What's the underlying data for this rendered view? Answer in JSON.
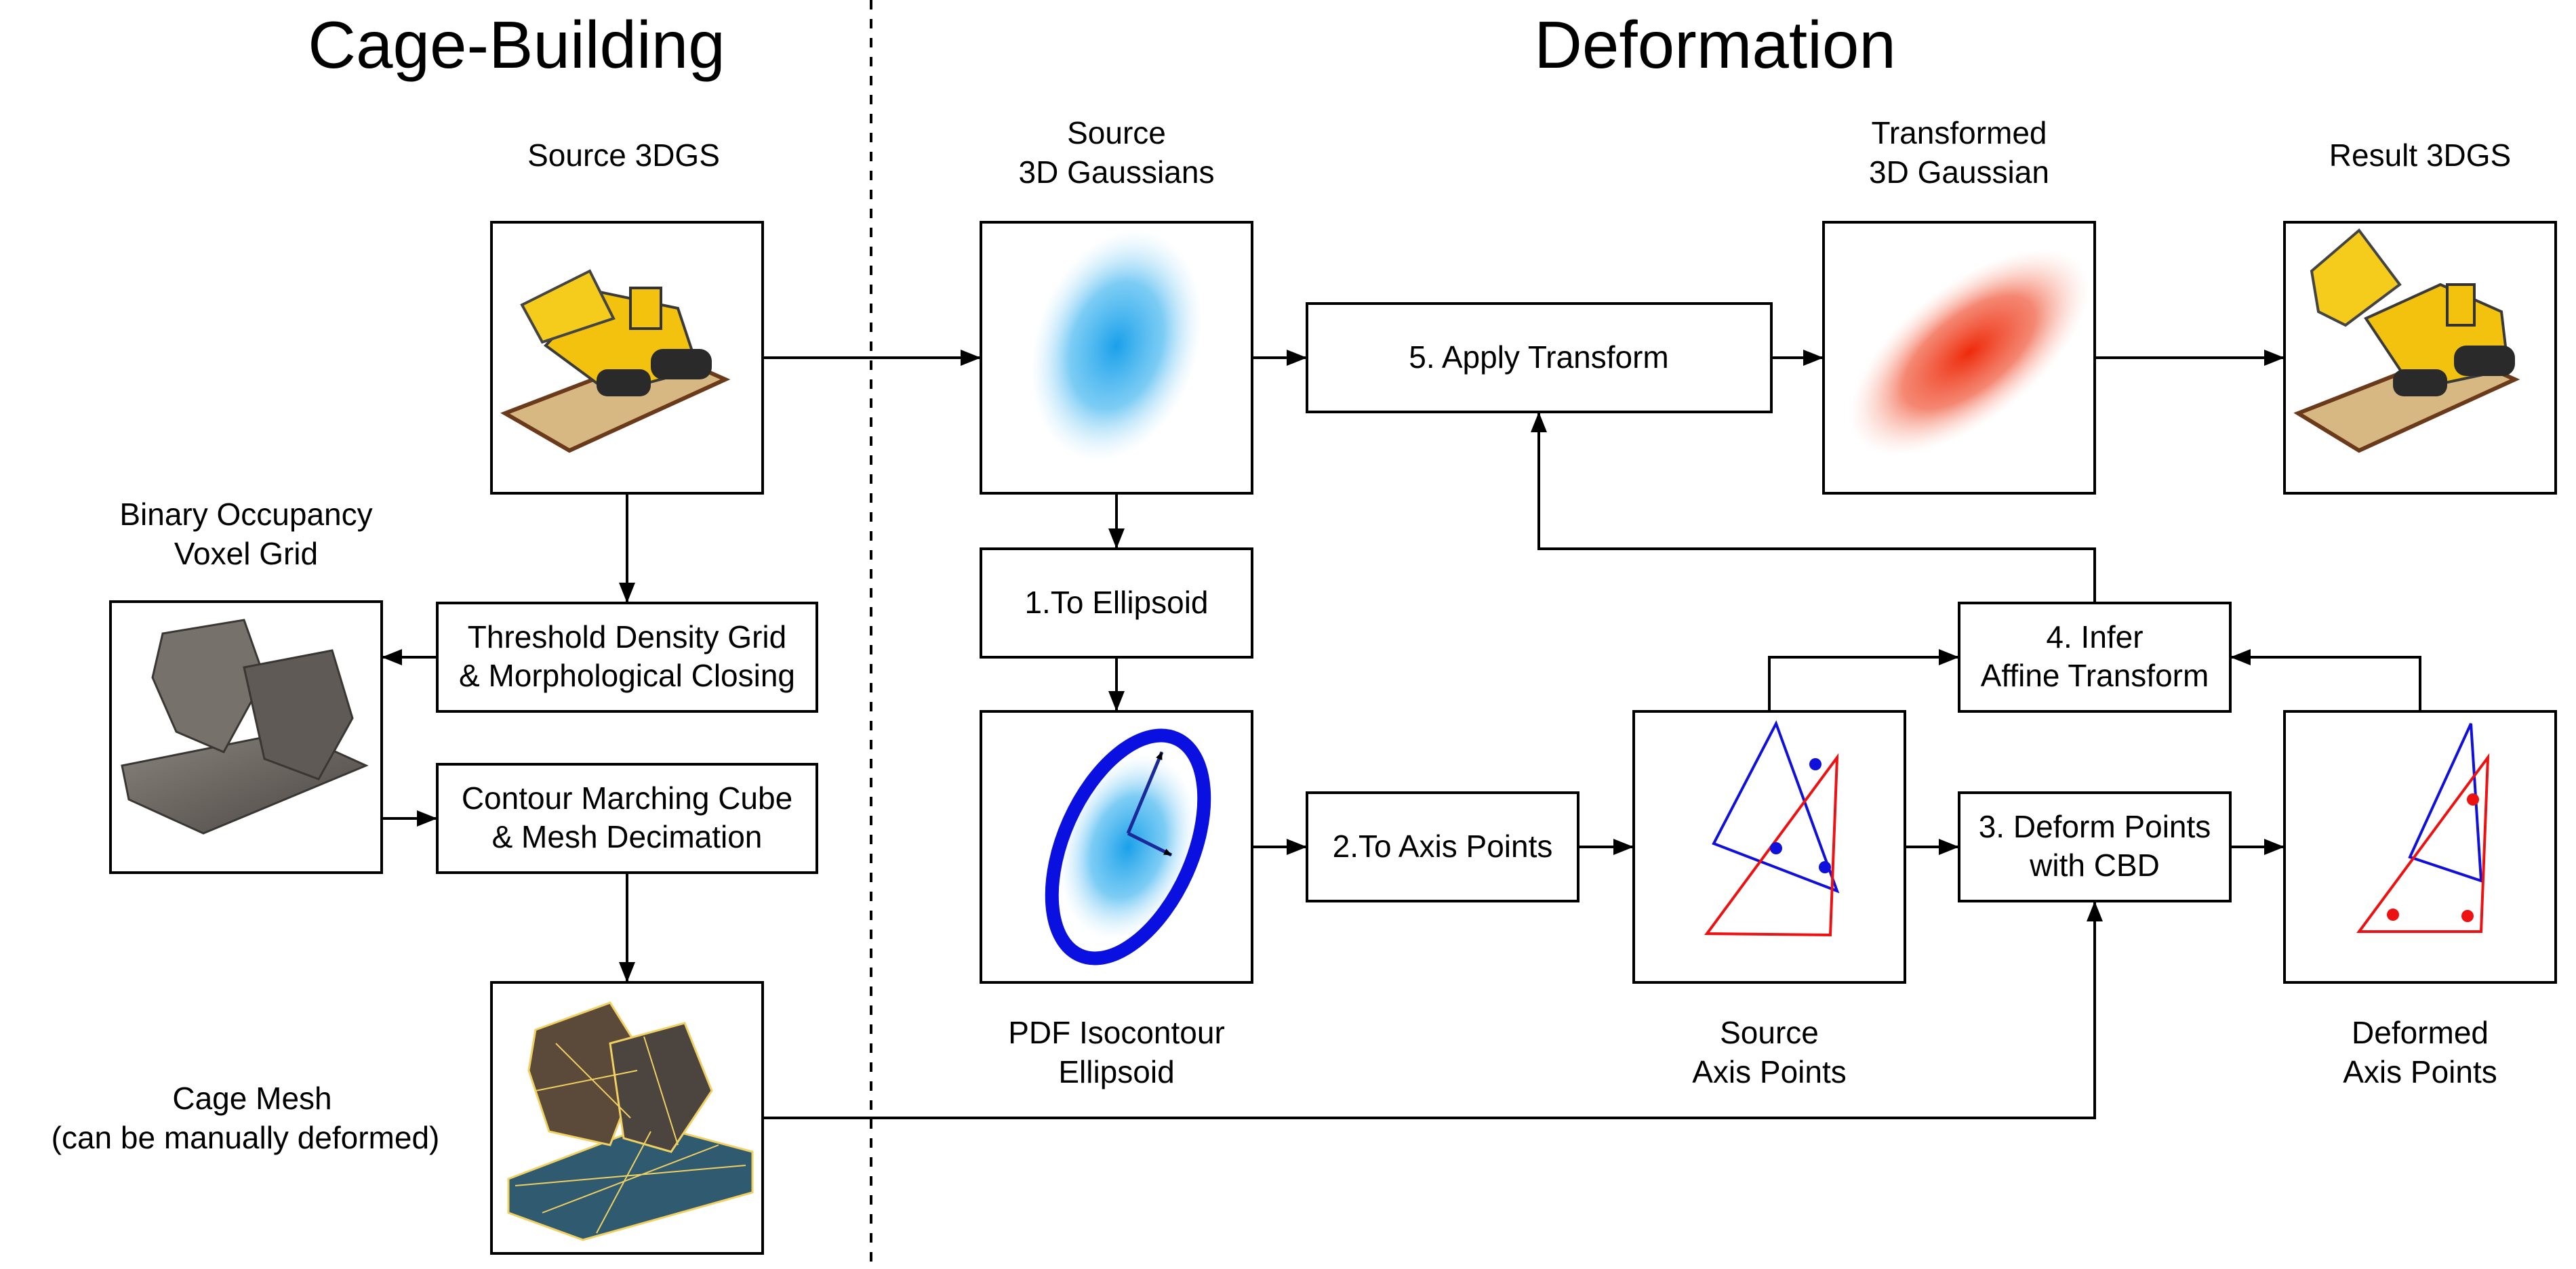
{
  "sections": {
    "cage_building": "Cage-Building",
    "deformation": "Deformation"
  },
  "labels": {
    "source_3dgs": "Source 3DGS",
    "binary_occupancy": [
      "Binary Occupancy",
      "Voxel Grid"
    ],
    "cage_mesh": [
      "Cage Mesh",
      "(can be manually deformed)"
    ],
    "source_gaussians": [
      "Source",
      "3D Gaussians"
    ],
    "transformed_gaussian": [
      "Transformed",
      "3D Gaussian"
    ],
    "result_3dgs": "Result 3DGS",
    "pdf_isocontour": [
      "PDF Isocontour",
      "Ellipsoid"
    ],
    "source_axis_points": [
      "Source",
      "Axis Points"
    ],
    "deformed_axis_points": [
      "Deformed",
      "Axis Points"
    ]
  },
  "steps": {
    "threshold": [
      "Threshold Density Grid",
      "& Morphological Closing"
    ],
    "marching": [
      "Contour Marching Cube",
      "& Mesh Decimation"
    ],
    "to_ellipsoid": "1.To Ellipsoid",
    "to_axis_points": "2.To Axis Points",
    "deform_points": [
      "3. Deform Points",
      "with CBD"
    ],
    "infer_affine": [
      "4. Infer",
      "Affine Transform"
    ],
    "apply_transform": "5. Apply Transform"
  },
  "colors": {
    "source_gaussian": "#33aaee",
    "transformed_gaussian": "#ee3311",
    "ellipse": "#0a10e0",
    "source_triangle": "#1010dd",
    "deformed_triangle": "#ee1111",
    "loader_yellow": "#f2c20f",
    "mesh_gray": "#6e6863",
    "cage_line": "#f0d060"
  }
}
